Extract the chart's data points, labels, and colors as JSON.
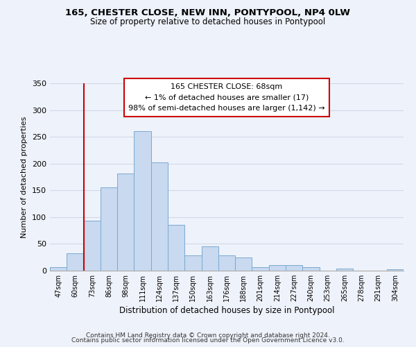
{
  "title": "165, CHESTER CLOSE, NEW INN, PONTYPOOL, NP4 0LW",
  "subtitle": "Size of property relative to detached houses in Pontypool",
  "xlabel": "Distribution of detached houses by size in Pontypool",
  "ylabel": "Number of detached properties",
  "bar_labels": [
    "47sqm",
    "60sqm",
    "73sqm",
    "86sqm",
    "98sqm",
    "111sqm",
    "124sqm",
    "137sqm",
    "150sqm",
    "163sqm",
    "176sqm",
    "188sqm",
    "201sqm",
    "214sqm",
    "227sqm",
    "240sqm",
    "253sqm",
    "265sqm",
    "278sqm",
    "291sqm",
    "304sqm"
  ],
  "bar_values": [
    6,
    32,
    93,
    155,
    182,
    260,
    202,
    85,
    28,
    46,
    28,
    24,
    6,
    10,
    10,
    6,
    0,
    4,
    0,
    0,
    3
  ],
  "bar_color": "#c8d9f0",
  "bar_edge_color": "#7aaad0",
  "vline_color": "#cc0000",
  "ylim": [
    0,
    350
  ],
  "yticks": [
    0,
    50,
    100,
    150,
    200,
    250,
    300,
    350
  ],
  "annotation_title": "165 CHESTER CLOSE: 68sqm",
  "annotation_line1": "← 1% of detached houses are smaller (17)",
  "annotation_line2": "98% of semi-detached houses are larger (1,142) →",
  "annotation_box_color": "#ffffff",
  "annotation_box_edge": "#cc0000",
  "footer1": "Contains HM Land Registry data © Crown copyright and database right 2024.",
  "footer2": "Contains public sector information licensed under the Open Government Licence v3.0.",
  "background_color": "#eef2fa",
  "grid_color": "#d0d8e8"
}
